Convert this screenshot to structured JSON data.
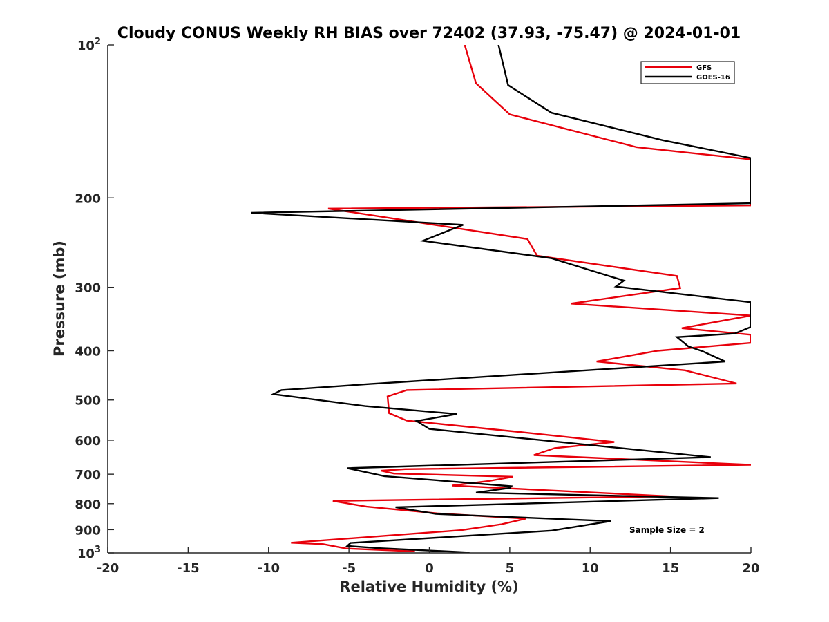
{
  "chart_data": {
    "type": "line",
    "title": "Cloudy CONUS Weekly RH BIAS over 72402 (37.93, -75.47) @ 2024-01-01",
    "xlabel": "Relative Humidity (%)",
    "ylabel": "Pressure (mb)",
    "xlim": [
      -20,
      20
    ],
    "ylim": [
      100,
      1000
    ],
    "y_scale": "log",
    "y_reversed": true,
    "x_ticks": [
      -20,
      -15,
      -10,
      -5,
      0,
      5,
      10,
      15,
      20
    ],
    "x_tick_labels": [
      "-20",
      "-15",
      "-10",
      "-5",
      "0",
      "5",
      "10",
      "15",
      "20"
    ],
    "y_ticks": [
      {
        "value": 100,
        "base": "10",
        "exp": "2"
      },
      {
        "value": 200,
        "label": "200"
      },
      {
        "value": 300,
        "label": "300"
      },
      {
        "value": 400,
        "label": "400"
      },
      {
        "value": 500,
        "label": "500"
      },
      {
        "value": 600,
        "label": "600"
      },
      {
        "value": 700,
        "label": "700"
      },
      {
        "value": 800,
        "label": "800"
      },
      {
        "value": 900,
        "label": "900"
      },
      {
        "value": 1000,
        "base": "10",
        "exp": "3"
      }
    ],
    "legend": {
      "position": "top-right"
    },
    "annotation": "Sample Size = 2",
    "series": [
      {
        "name": "GFS",
        "color": "#e8000b",
        "points": [
          [
            2.2,
            100
          ],
          [
            2.9,
            119
          ],
          [
            5.0,
            137
          ],
          [
            12.9,
            159
          ],
          [
            20.0,
            168
          ],
          [
            20.0,
            207
          ],
          [
            -6.3,
            210
          ],
          [
            6.1,
            241
          ],
          [
            6.7,
            260
          ],
          [
            15.4,
            285
          ],
          [
            15.6,
            301
          ],
          [
            8.8,
            323
          ],
          [
            20.0,
            341
          ],
          [
            15.7,
            361
          ],
          [
            20.0,
            372
          ],
          [
            20.0,
            386
          ],
          [
            14.2,
            400
          ],
          [
            10.4,
            420
          ],
          [
            15.9,
            437
          ],
          [
            19.1,
            464
          ],
          [
            -1.4,
            478
          ],
          [
            -2.6,
            492
          ],
          [
            -2.5,
            531
          ],
          [
            -1.4,
            549
          ],
          [
            5.6,
            578
          ],
          [
            11.5,
            605
          ],
          [
            7.8,
            622
          ],
          [
            6.5,
            642
          ],
          [
            20.0,
            671
          ],
          [
            -1.5,
            684
          ],
          [
            -3.0,
            689
          ],
          [
            -2.2,
            698
          ],
          [
            5.2,
            708
          ],
          [
            3.7,
            722
          ],
          [
            1.4,
            737
          ],
          [
            15.0,
            774
          ],
          [
            -6.0,
            790
          ],
          [
            -3.9,
            811
          ],
          [
            0.5,
            836
          ],
          [
            6.0,
            856
          ],
          [
            4.5,
            878
          ],
          [
            2.0,
            902
          ],
          [
            -8.6,
            955
          ],
          [
            -6.6,
            961
          ],
          [
            -5.2,
            980
          ],
          [
            -0.9,
            993
          ]
        ]
      },
      {
        "name": "GOES-16",
        "color": "#000000",
        "points": [
          [
            4.3,
            100
          ],
          [
            4.9,
            120
          ],
          [
            7.6,
            136
          ],
          [
            14.5,
            154
          ],
          [
            20.0,
            167
          ],
          [
            20.0,
            205
          ],
          [
            -11.1,
            214
          ],
          [
            2.1,
            226
          ],
          [
            -0.4,
            243
          ],
          [
            7.6,
            263
          ],
          [
            12.1,
            291
          ],
          [
            11.6,
            299
          ],
          [
            20.0,
            321
          ],
          [
            20.0,
            359
          ],
          [
            19.0,
            370
          ],
          [
            15.4,
            376
          ],
          [
            16.1,
            392
          ],
          [
            17.0,
            401
          ],
          [
            18.4,
            420
          ],
          [
            -3.7,
            465
          ],
          [
            -9.2,
            478
          ],
          [
            -9.7,
            487
          ],
          [
            -4.0,
            514
          ],
          [
            1.7,
            533
          ],
          [
            -0.8,
            550
          ],
          [
            0.0,
            570
          ],
          [
            17.5,
            648
          ],
          [
            -5.1,
            681
          ],
          [
            -2.8,
            706
          ],
          [
            5.1,
            739
          ],
          [
            5.0,
            745
          ],
          [
            2.9,
            761
          ],
          [
            18.0,
            780
          ],
          [
            -2.1,
            813
          ],
          [
            0.4,
            838
          ],
          [
            11.3,
            866
          ],
          [
            10.6,
            873
          ],
          [
            7.6,
            904
          ],
          [
            -4.9,
            956
          ],
          [
            -5.1,
            969
          ],
          [
            -3.3,
            978
          ],
          [
            2.5,
            998
          ]
        ]
      }
    ]
  }
}
